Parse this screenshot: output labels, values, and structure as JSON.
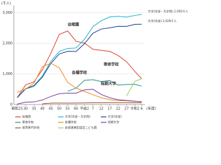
{
  "chart_data": {
    "type": "line",
    "y_unit": "(千人)",
    "x_unit": "(年度)",
    "x": [
      1950,
      1955,
      1960,
      1965,
      1970,
      1975,
      1980,
      1985,
      1990,
      1995,
      2000,
      2005,
      2010,
      2015,
      2020,
      2024
    ],
    "xlim": [
      1948,
      2026
    ],
    "xticks": [
      {
        "value": 1950,
        "label": "昭和25"
      },
      {
        "value": 1955,
        "label": "30"
      },
      {
        "value": 1960,
        "label": "35"
      },
      {
        "value": 1965,
        "label": "40"
      },
      {
        "value": 1970,
        "label": "45"
      },
      {
        "value": 1975,
        "label": "50"
      },
      {
        "value": 1980,
        "label": "55"
      },
      {
        "value": 1985,
        "label": "60"
      },
      {
        "value": 1990,
        "label": "平成2"
      },
      {
        "value": 1995,
        "label": "7"
      },
      {
        "value": 2000,
        "label": "12"
      },
      {
        "value": 2005,
        "label": "17"
      },
      {
        "value": 2010,
        "label": "22"
      },
      {
        "value": 2015,
        "label": "27"
      },
      {
        "value": 2020,
        "label": "令和2"
      },
      {
        "value": 2024,
        "label": "6"
      }
    ],
    "ylim": [
      0,
      3150
    ],
    "yticks": [
      0,
      {
        "value": 1000,
        "label": "1,000"
      },
      {
        "value": 2000,
        "label": "2,000"
      },
      {
        "value": 3000,
        "label": "3,000"
      }
    ],
    "grid": true,
    "series": [
      {
        "name": "幼稚園",
        "color": "#e0433a",
        "values": [
          224,
          640,
          742,
          1137,
          1675,
          2292,
          2407,
          2068,
          2008,
          1808,
          1773,
          1738,
          1605,
          1402,
          1078,
          841
        ]
      },
      {
        "name": "大学(学部・大学院)",
        "color": "#17b7c9",
        "values": [
          225,
          523,
          626,
          938,
          1407,
          1734,
          1835,
          1849,
          2133,
          2547,
          2740,
          2865,
          2887,
          2860,
          2915,
          2950
        ]
      },
      {
        "name": "大学(学部)",
        "color": "#1f3f8f",
        "values": [
          224,
          508,
          602,
          896,
          1344,
          1652,
          1741,
          1735,
          1988,
          2330,
          2471,
          2508,
          2559,
          2556,
          2623,
          2628
        ]
      },
      {
        "name": "専修学校",
        "color": "#2f8f8f",
        "values": [
          null,
          null,
          null,
          null,
          null,
          null,
          432,
          538,
          791,
          813,
          750,
          783,
          637,
          656,
          661,
          600
        ]
      },
      {
        "name": "各種学校",
        "color": "#f08a24",
        "values": [
          400,
          500,
          700,
          1240,
          1350,
          1205,
          724,
          537,
          428,
          322,
          222,
          155,
          130,
          121,
          102,
          100
        ]
      },
      {
        "name": "短期大学",
        "color": "#7b3fa0",
        "values": [
          15,
          77,
          83,
          148,
          263,
          354,
          371,
          371,
          479,
          499,
          328,
          219,
          155,
          133,
          107,
          86
        ]
      },
      {
        "name": "高等専門学校",
        "color": "#a0522d",
        "values": [
          null,
          null,
          null,
          22,
          44,
          48,
          46,
          48,
          52,
          56,
          57,
          59,
          59,
          58,
          57,
          56
        ]
      },
      {
        "name": "幼保連携型認定こども園",
        "color": "#8fd45a",
        "values": [
          null,
          null,
          null,
          null,
          null,
          null,
          null,
          null,
          null,
          null,
          null,
          null,
          null,
          281,
          759,
          844
        ]
      }
    ],
    "annotations": [
      "幼稚園",
      "専修学校",
      "各種学校",
      "短期大学",
      "大学(学部・大学院) 2,950千人",
      "大学(学部) 2,628千人"
    ]
  }
}
